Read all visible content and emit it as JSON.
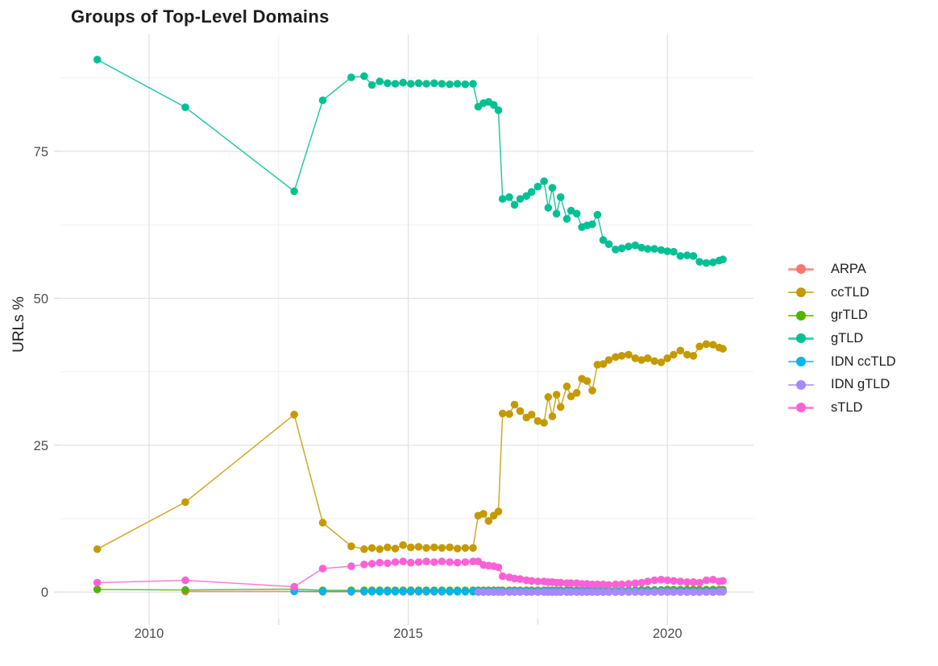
{
  "chart": {
    "title": "Groups of Top-Level Domains",
    "ylabel": "URLs %"
  },
  "chart_data": {
    "type": "line",
    "title": "Groups of Top-Level Domains",
    "xlabel": "",
    "ylabel": "URLs %",
    "legend_position": "right",
    "grid": true,
    "background": "#ffffff",
    "grid_major_color": "#e3e3e3",
    "grid_minor_color": "#f1f1f1",
    "axis_text_color": "#4d4d4d",
    "xlim": [
      2008.29,
      2021.66
    ],
    "ylim": [
      -4.5,
      95.0
    ],
    "x_ticks": [
      2010,
      2015,
      2020
    ],
    "x_tick_labels": [
      "2010",
      "2015",
      "2020"
    ],
    "x_minor_ticks": [
      2012.5,
      2017.5
    ],
    "y_ticks": [
      0,
      25,
      50,
      75
    ],
    "y_tick_labels": [
      "0",
      "25",
      "50",
      "75"
    ],
    "y_minor_ticks": [
      12.5,
      37.5,
      62.5,
      87.5
    ],
    "x": [
      2009.0,
      2010.7,
      2012.8,
      2013.35,
      2013.9,
      2014.15,
      2014.3,
      2014.45,
      2014.6,
      2014.75,
      2014.9,
      2015.05,
      2015.2,
      2015.35,
      2015.5,
      2015.65,
      2015.8,
      2015.95,
      2016.1,
      2016.25,
      2016.35,
      2016.45,
      2016.55,
      2016.65,
      2016.74,
      2016.82,
      2016.95,
      2017.05,
      2017.16,
      2017.28,
      2017.38,
      2017.5,
      2017.62,
      2017.7,
      2017.78,
      2017.86,
      2017.94,
      2018.06,
      2018.14,
      2018.25,
      2018.35,
      2018.45,
      2018.55,
      2018.65,
      2018.76,
      2018.87,
      2019.0,
      2019.12,
      2019.25,
      2019.38,
      2019.5,
      2019.62,
      2019.75,
      2019.88,
      2020.0,
      2020.12,
      2020.25,
      2020.38,
      2020.5,
      2020.62,
      2020.75,
      2020.88,
      2021.0,
      2021.07
    ],
    "series": [
      {
        "name": "ARPA",
        "color": "#F8766D",
        "values": [
          null,
          0.1,
          0.1,
          0.05,
          0.05,
          0.05,
          0.05,
          0.05,
          0.05,
          0.05,
          0.05,
          0.05,
          0.05,
          0.05,
          0.05,
          0.05,
          0.05,
          0.05,
          0.05,
          0.05,
          0.05,
          0.05,
          0.05,
          0.05,
          0.05,
          0.05,
          0.05,
          0.05,
          0.05,
          0.05,
          0.05,
          0.05,
          0.05,
          0.05,
          0.05,
          0.05,
          0.05,
          0.05,
          0.05,
          0.05,
          0.05,
          0.05,
          0.05,
          0.05,
          0.05,
          0.05,
          0.05,
          0.05,
          0.05,
          0.05,
          0.05,
          0.05,
          0.05,
          0.05,
          0.05,
          0.05,
          0.05,
          0.05,
          0.05,
          0.05,
          0.05,
          0.05,
          0.05,
          0.05
        ]
      },
      {
        "name": "ccTLD",
        "color": "#C49A00",
        "values": [
          7.3,
          15.3,
          30.2,
          11.8,
          7.8,
          7.3,
          7.5,
          7.3,
          7.6,
          7.4,
          8.0,
          7.6,
          7.7,
          7.5,
          7.6,
          7.5,
          7.6,
          7.4,
          7.5,
          7.5,
          13.0,
          13.3,
          12.1,
          13.0,
          13.7,
          30.4,
          30.3,
          31.9,
          30.8,
          29.7,
          30.2,
          29.1,
          28.8,
          33.2,
          29.9,
          33.6,
          31.5,
          35.0,
          33.3,
          33.9,
          36.3,
          35.9,
          34.3,
          38.7,
          38.8,
          39.5,
          40.0,
          40.2,
          40.4,
          39.8,
          39.5,
          39.8,
          39.3,
          39.1,
          39.8,
          40.4,
          41.1,
          40.4,
          40.2,
          41.8,
          42.2,
          42.1,
          41.6,
          41.4
        ]
      },
      {
        "name": "grTLD",
        "color": "#53B400",
        "values": [
          0.45,
          0.35,
          0.5,
          0.3,
          0.3,
          0.3,
          0.3,
          0.3,
          0.3,
          0.3,
          0.3,
          0.3,
          0.3,
          0.3,
          0.3,
          0.3,
          0.3,
          0.3,
          0.3,
          0.3,
          0.3,
          0.3,
          0.3,
          0.3,
          0.3,
          0.3,
          0.3,
          0.3,
          0.3,
          0.3,
          0.3,
          0.3,
          0.3,
          0.3,
          0.3,
          0.3,
          0.3,
          0.3,
          0.3,
          0.3,
          0.3,
          0.3,
          0.3,
          0.3,
          0.3,
          0.3,
          0.3,
          0.3,
          0.3,
          0.3,
          0.35,
          0.35,
          0.35,
          0.35,
          0.4,
          0.4,
          0.4,
          0.4,
          0.4,
          0.4,
          0.4,
          0.4,
          0.4,
          0.4
        ]
      },
      {
        "name": "gTLD",
        "color": "#00C094",
        "values": [
          90.6,
          82.5,
          68.2,
          83.7,
          87.6,
          87.8,
          86.3,
          86.9,
          86.6,
          86.5,
          86.7,
          86.5,
          86.6,
          86.5,
          86.6,
          86.5,
          86.4,
          86.5,
          86.4,
          86.5,
          82.6,
          83.2,
          83.4,
          82.9,
          82.0,
          66.9,
          67.2,
          65.9,
          66.9,
          67.4,
          68.1,
          69.0,
          69.9,
          65.4,
          68.8,
          64.4,
          67.2,
          63.5,
          64.9,
          64.4,
          62.1,
          62.4,
          62.6,
          64.2,
          59.9,
          59.2,
          58.3,
          58.5,
          58.8,
          59.0,
          58.6,
          58.4,
          58.4,
          58.2,
          58.0,
          57.9,
          57.2,
          57.3,
          57.2,
          56.2,
          56.0,
          56.1,
          56.4,
          56.6
        ]
      },
      {
        "name": "IDN ccTLD",
        "color": "#00B6EB",
        "values": [
          null,
          null,
          0.15,
          0.1,
          0.1,
          0.1,
          0.1,
          0.1,
          0.1,
          0.1,
          0.1,
          0.1,
          0.1,
          0.1,
          0.1,
          0.1,
          0.1,
          0.1,
          0.1,
          0.1,
          0.15,
          0.1,
          0.1,
          0.1,
          0.1,
          0.1,
          0.1,
          0.1,
          0.1,
          0.1,
          0.1,
          0.1,
          0.1,
          0.1,
          0.1,
          0.1,
          0.1,
          0.1,
          0.1,
          0.1,
          0.1,
          0.1,
          0.1,
          0.1,
          0.1,
          0.1,
          0.1,
          0.1,
          0.1,
          0.1,
          0.1,
          0.1,
          0.1,
          0.1,
          0.1,
          0.1,
          0.1,
          0.1,
          0.1,
          0.1,
          0.1,
          0.1,
          0.1,
          0.15
        ]
      },
      {
        "name": "IDN gTLD",
        "color": "#A58AFF",
        "values": [
          null,
          null,
          null,
          null,
          null,
          null,
          null,
          null,
          null,
          null,
          null,
          null,
          null,
          null,
          null,
          null,
          null,
          null,
          null,
          null,
          0,
          0,
          0,
          0,
          0,
          0,
          0,
          0,
          0,
          0,
          0,
          0,
          0,
          0,
          0,
          0,
          0,
          0,
          0,
          0,
          0,
          0,
          0,
          0,
          0,
          0,
          0,
          0,
          0,
          0,
          0,
          0,
          0,
          0,
          0,
          0,
          0,
          0,
          0,
          0,
          0,
          0,
          0.1,
          0.1
        ]
      },
      {
        "name": "sTLD",
        "color": "#FB61D7",
        "values": [
          1.6,
          2.0,
          0.9,
          4.0,
          4.4,
          4.7,
          4.8,
          5.0,
          4.9,
          5.1,
          5.2,
          5.0,
          5.1,
          5.2,
          5.1,
          5.2,
          5.1,
          5.0,
          5.1,
          5.2,
          5.2,
          4.6,
          4.5,
          4.4,
          4.2,
          2.7,
          2.5,
          2.3,
          2.2,
          2.0,
          1.9,
          1.8,
          1.8,
          1.7,
          1.7,
          1.6,
          1.6,
          1.5,
          1.5,
          1.5,
          1.4,
          1.4,
          1.3,
          1.3,
          1.3,
          1.2,
          1.3,
          1.3,
          1.4,
          1.5,
          1.6,
          1.8,
          2.0,
          2.1,
          2.0,
          1.9,
          1.8,
          1.7,
          1.7,
          1.6,
          2.0,
          2.1,
          1.8,
          1.9
        ]
      }
    ]
  }
}
